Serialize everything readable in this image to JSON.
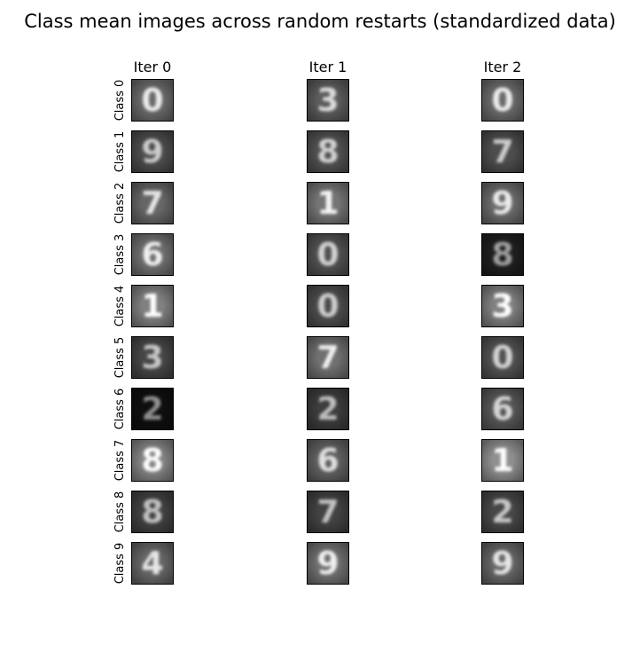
{
  "chart_data": {
    "type": "image-grid",
    "title": "Class mean images across random restarts (standardized data)",
    "columns": [
      "Iter 0",
      "Iter 1",
      "Iter 2"
    ],
    "rows": [
      "Class 0",
      "Class 1",
      "Class 2",
      "Class 3",
      "Class 4",
      "Class 5",
      "Class 6",
      "Class 7",
      "Class 8",
      "Class 9"
    ],
    "cells": [
      [
        "0",
        "3",
        "0"
      ],
      [
        "9",
        "8",
        "7"
      ],
      [
        "7",
        "1",
        "9"
      ],
      [
        "6",
        "0",
        "8"
      ],
      [
        "1",
        "0",
        "3"
      ],
      [
        "3",
        "7",
        "0"
      ],
      [
        "2",
        "2",
        "6"
      ],
      [
        "8",
        "6",
        "1"
      ],
      [
        "8",
        "7",
        "2"
      ],
      [
        "4",
        "9",
        "9"
      ]
    ],
    "background_gray": [
      [
        0.42,
        0.36,
        0.42
      ],
      [
        0.3,
        0.32,
        0.3
      ],
      [
        0.4,
        0.46,
        0.42
      ],
      [
        0.44,
        0.32,
        0.12
      ],
      [
        0.5,
        0.3,
        0.5
      ],
      [
        0.28,
        0.44,
        0.32
      ],
      [
        0.06,
        0.24,
        0.34
      ],
      [
        0.52,
        0.38,
        0.56
      ],
      [
        0.26,
        0.26,
        0.28
      ],
      [
        0.4,
        0.44,
        0.4
      ]
    ],
    "colormap": "gray"
  }
}
